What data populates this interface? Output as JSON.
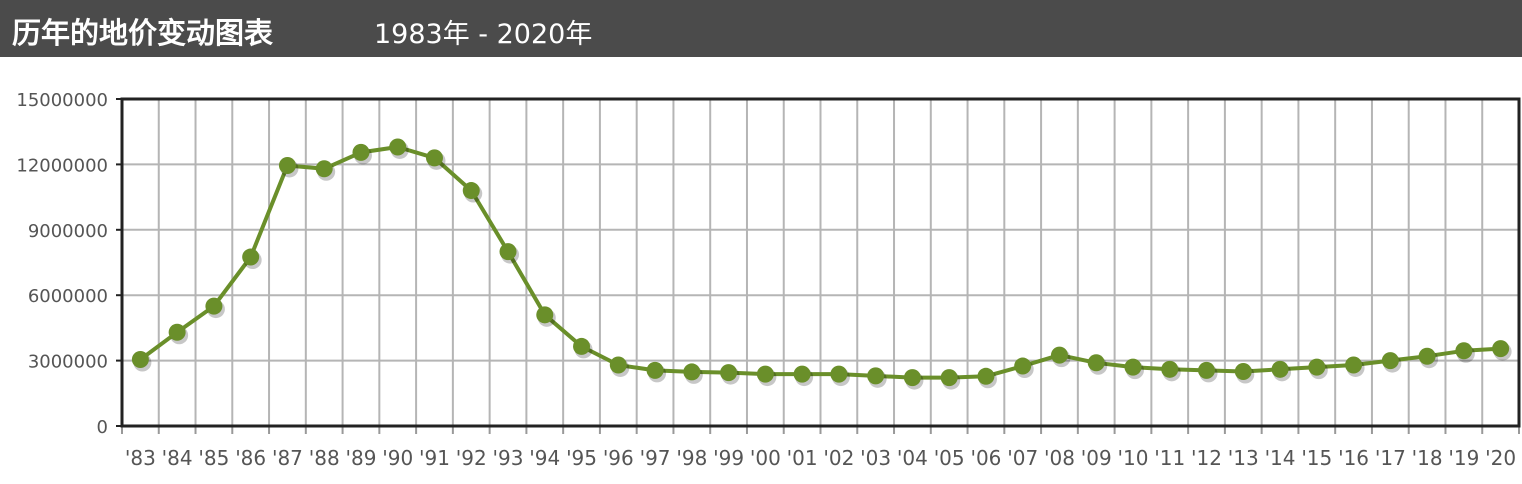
{
  "header": {
    "title": "历年的地价变动图表",
    "range": "1983年 - 2020年"
  },
  "chart_data": {
    "type": "line",
    "title": "历年的地价变动图表",
    "subtitle": "1983年 - 2020年",
    "xlabel": "",
    "ylabel": "",
    "ylim": [
      0,
      15000000
    ],
    "yticks": [
      0,
      3000000,
      6000000,
      9000000,
      12000000,
      15000000
    ],
    "ytick_labels": [
      "0",
      "3000000",
      "6000000",
      "9000000",
      "12000000",
      "15000000"
    ],
    "grid": true,
    "legend": "none",
    "categories": [
      "'83",
      "'84",
      "'85",
      "'86",
      "'87",
      "'88",
      "'89",
      "'90",
      "'91",
      "'92",
      "'93",
      "'94",
      "'95",
      "'96",
      "'97",
      "'98",
      "'99",
      "'00",
      "'01",
      "'02",
      "'03",
      "'04",
      "'05",
      "'06",
      "'07",
      "'08",
      "'09",
      "'10",
      "'11",
      "'12",
      "'13",
      "'14",
      "'15",
      "'16",
      "'17",
      "'18",
      "'19",
      "'20"
    ],
    "series": [
      {
        "color": "#6a8f2a",
        "values": [
          3050000,
          4300000,
          5500000,
          7750000,
          11950000,
          11800000,
          12550000,
          12800000,
          12300000,
          10800000,
          8000000,
          5100000,
          3650000,
          2800000,
          2550000,
          2480000,
          2450000,
          2380000,
          2380000,
          2380000,
          2300000,
          2220000,
          2220000,
          2280000,
          2750000,
          3250000,
          2900000,
          2700000,
          2600000,
          2550000,
          2500000,
          2600000,
          2700000,
          2800000,
          3000000,
          3200000,
          3450000,
          3550000
        ]
      }
    ]
  }
}
